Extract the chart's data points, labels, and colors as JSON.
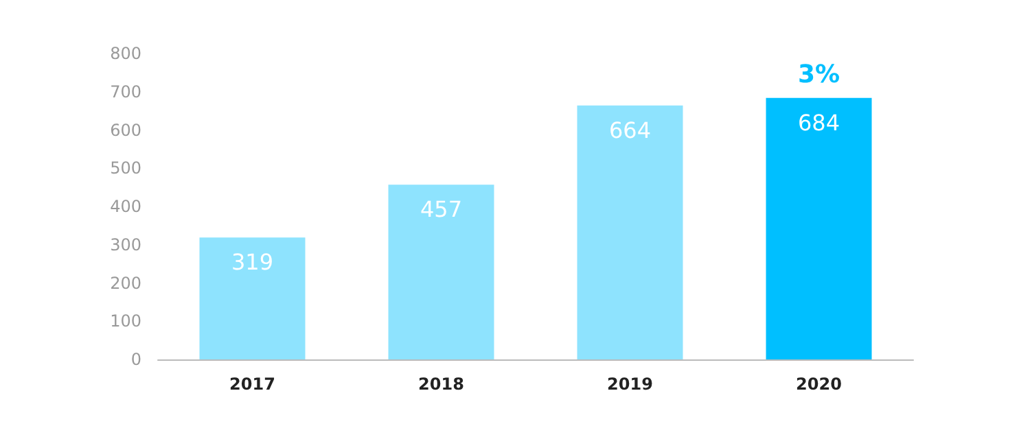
{
  "chart_data": {
    "type": "bar",
    "categories": [
      "2017",
      "2018",
      "2019",
      "2020"
    ],
    "values": [
      319,
      457,
      664,
      684
    ],
    "colors": [
      "#8ee3fe",
      "#8ee3fe",
      "#8ee3fe",
      "#00bfff"
    ],
    "ylim": [
      0,
      800
    ],
    "yticks": [
      0,
      100,
      200,
      300,
      400,
      500,
      600,
      700,
      800
    ],
    "grid": false,
    "data_labels": true,
    "annotations": [
      {
        "text": "3%",
        "x": "2020",
        "y": 684
      }
    ]
  }
}
